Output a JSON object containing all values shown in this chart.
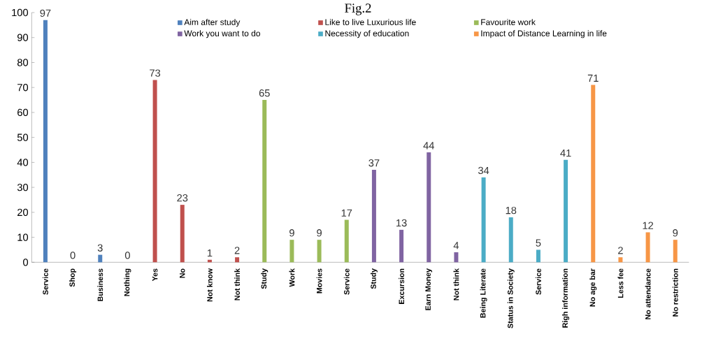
{
  "chart_data": {
    "type": "bar",
    "title": "Fig.2",
    "categories": [
      "Service",
      "Shop",
      "Business",
      "Nothing",
      "Yes",
      "No",
      "Not know",
      "Not think",
      "Study",
      "Work",
      "Movies",
      "Service",
      "Study",
      "Excursion",
      "Earn Money",
      "Not think",
      "Being Literate",
      "Status in Society",
      "Service",
      "Righ information",
      "No age bar",
      "Less fee",
      "No attendance",
      "No restriction"
    ],
    "series": [
      {
        "name": "Aim after study",
        "color": "#4f81bd",
        "values": [
          97,
          0,
          3,
          0,
          null,
          null,
          null,
          null,
          null,
          null,
          null,
          null,
          null,
          null,
          null,
          null,
          null,
          null,
          null,
          null,
          null,
          null,
          null,
          null
        ]
      },
      {
        "name": "Like to live Luxurious life",
        "color": "#c0504d",
        "values": [
          null,
          null,
          null,
          null,
          73,
          23,
          1,
          2,
          null,
          null,
          null,
          null,
          null,
          null,
          null,
          null,
          null,
          null,
          null,
          null,
          null,
          null,
          null,
          null
        ]
      },
      {
        "name": "Favourite work",
        "color": "#9bbb59",
        "values": [
          null,
          null,
          null,
          null,
          null,
          null,
          null,
          null,
          65,
          9,
          9,
          17,
          null,
          null,
          null,
          null,
          null,
          null,
          null,
          null,
          null,
          null,
          null,
          null
        ]
      },
      {
        "name": "Work you want to do",
        "color": "#8064a2",
        "values": [
          null,
          null,
          null,
          null,
          null,
          null,
          null,
          null,
          null,
          null,
          null,
          null,
          37,
          13,
          44,
          4,
          null,
          null,
          null,
          null,
          null,
          null,
          null,
          null
        ]
      },
      {
        "name": "Necessity of education",
        "color": "#4bacc6",
        "values": [
          null,
          null,
          null,
          null,
          null,
          null,
          null,
          null,
          null,
          null,
          null,
          null,
          null,
          null,
          null,
          null,
          34,
          18,
          5,
          41,
          null,
          null,
          null,
          null
        ]
      },
      {
        "name": "Impact of Distance Learning in life",
        "color": "#f79646",
        "values": [
          null,
          null,
          null,
          null,
          null,
          null,
          null,
          null,
          null,
          null,
          null,
          null,
          null,
          null,
          null,
          null,
          null,
          null,
          null,
          null,
          71,
          2,
          12,
          9
        ]
      }
    ],
    "ylim": [
      0,
      100
    ],
    "yticks": [
      0,
      10,
      20,
      30,
      40,
      50,
      60,
      70,
      80,
      90,
      100
    ],
    "data_labels": true,
    "legend": "top",
    "grid": false
  }
}
